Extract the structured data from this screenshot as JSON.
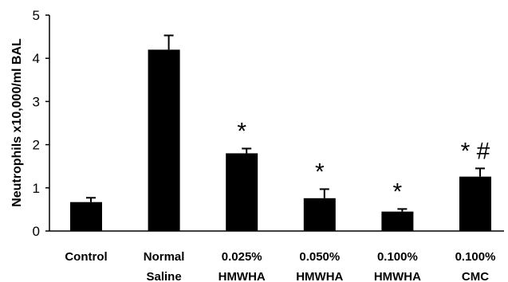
{
  "chart_data": {
    "type": "bar",
    "title": "",
    "xlabel": "",
    "ylabel": "Neutrophils x10,000/ml BAL",
    "ylim": [
      0,
      5
    ],
    "yticks": [
      "0",
      "1",
      "2",
      "3",
      "4",
      "5"
    ],
    "grid": false,
    "legend": "none",
    "bar_color": "#000000",
    "categories": [
      [
        "Control"
      ],
      [
        "Normal",
        "Saline"
      ],
      [
        "0.025%",
        "HMWHA"
      ],
      [
        "0.050%",
        "HMWHA"
      ],
      [
        "0.100%",
        "HMWHA"
      ],
      [
        "0.100%",
        "CMC"
      ]
    ],
    "values": [
      0.67,
      4.2,
      1.8,
      0.76,
      0.45,
      1.26
    ],
    "errors": [
      0.1,
      0.33,
      0.11,
      0.21,
      0.06,
      0.19
    ],
    "annotations": [
      "",
      "",
      "*",
      "*",
      "*",
      "* #"
    ]
  }
}
